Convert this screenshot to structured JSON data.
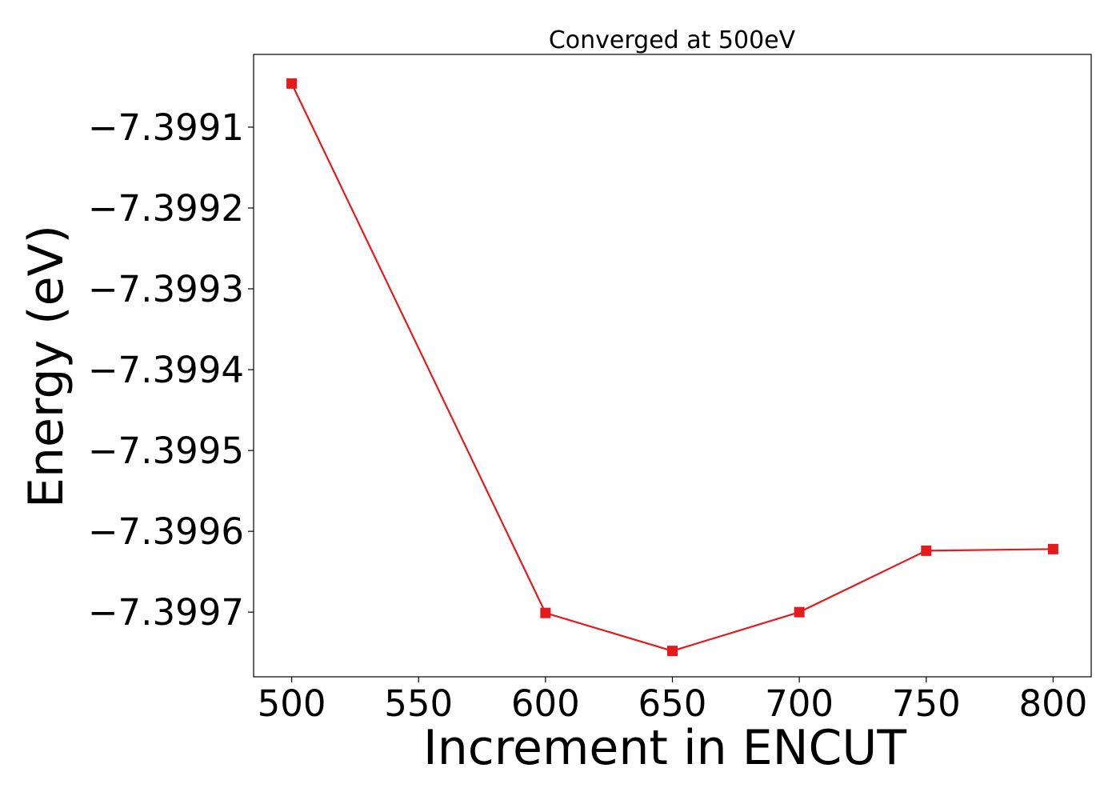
{
  "chart_data": {
    "type": "line",
    "title": "Converged at 500eV",
    "xlabel": "Increment in ENCUT",
    "ylabel": "Energy (eV)",
    "xlim": [
      485,
      815
    ],
    "ylim": [
      -7.39978,
      -7.39901
    ],
    "x_ticks": [
      500,
      550,
      600,
      650,
      700,
      750,
      800
    ],
    "x_tick_labels": [
      "500",
      "550",
      "600",
      "650",
      "700",
      "750",
      "800"
    ],
    "y_ticks": [
      -7.3991,
      -7.3992,
      -7.3993,
      -7.3994,
      -7.3995,
      -7.3996,
      -7.3997
    ],
    "y_tick_labels": [
      "−7.3991",
      "−7.3992",
      "−7.3993",
      "−7.3994",
      "−7.3995",
      "−7.3996",
      "−7.3997"
    ],
    "grid": false,
    "legend": "none",
    "series": [
      {
        "x": [
          500,
          600,
          650,
          700,
          750,
          800
        ],
        "y": [
          -7.399046,
          -7.399701,
          -7.399748,
          -7.3997,
          -7.399624,
          -7.399622
        ],
        "color": "#e41a1c",
        "marker": "square"
      }
    ]
  }
}
